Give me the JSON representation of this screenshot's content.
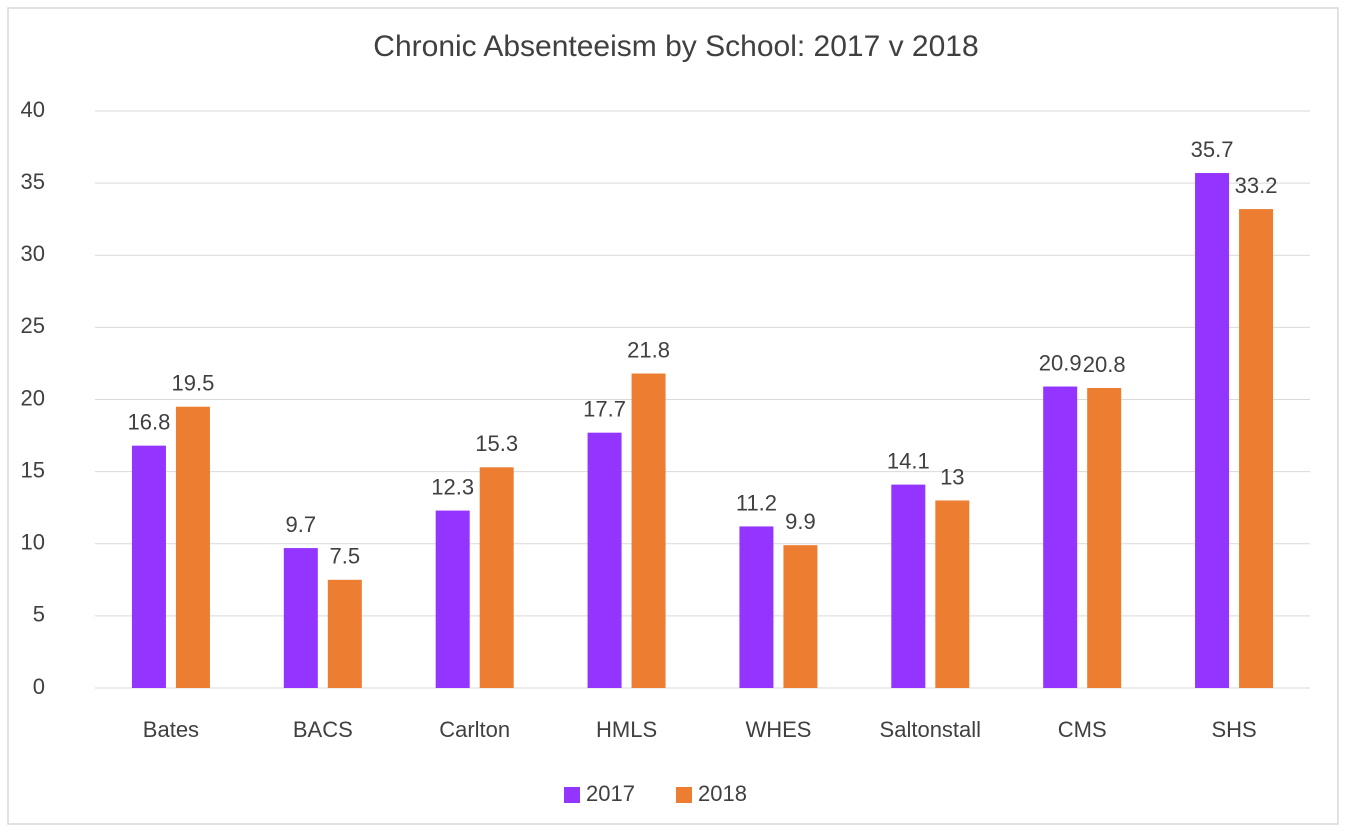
{
  "chart_data": {
    "type": "bar",
    "title": "Chronic Absenteeism by School: 2017 v 2018",
    "categories": [
      "Bates",
      "BACS",
      "Carlton",
      "HMLS",
      "WHES",
      "Saltonstall",
      "CMS",
      "SHS"
    ],
    "series": [
      {
        "name": "2017",
        "color": "#9335ff",
        "values": [
          16.8,
          9.7,
          12.3,
          17.7,
          11.2,
          14.1,
          20.9,
          35.7
        ]
      },
      {
        "name": "2018",
        "color": "#ed7d31",
        "values": [
          19.5,
          7.5,
          15.3,
          21.8,
          9.9,
          13,
          20.8,
          33.2
        ]
      }
    ],
    "ylim": [
      0,
      40
    ],
    "yticks": [
      0,
      5,
      10,
      15,
      20,
      25,
      30,
      35,
      40
    ],
    "grid": true,
    "legend": "bottom"
  }
}
